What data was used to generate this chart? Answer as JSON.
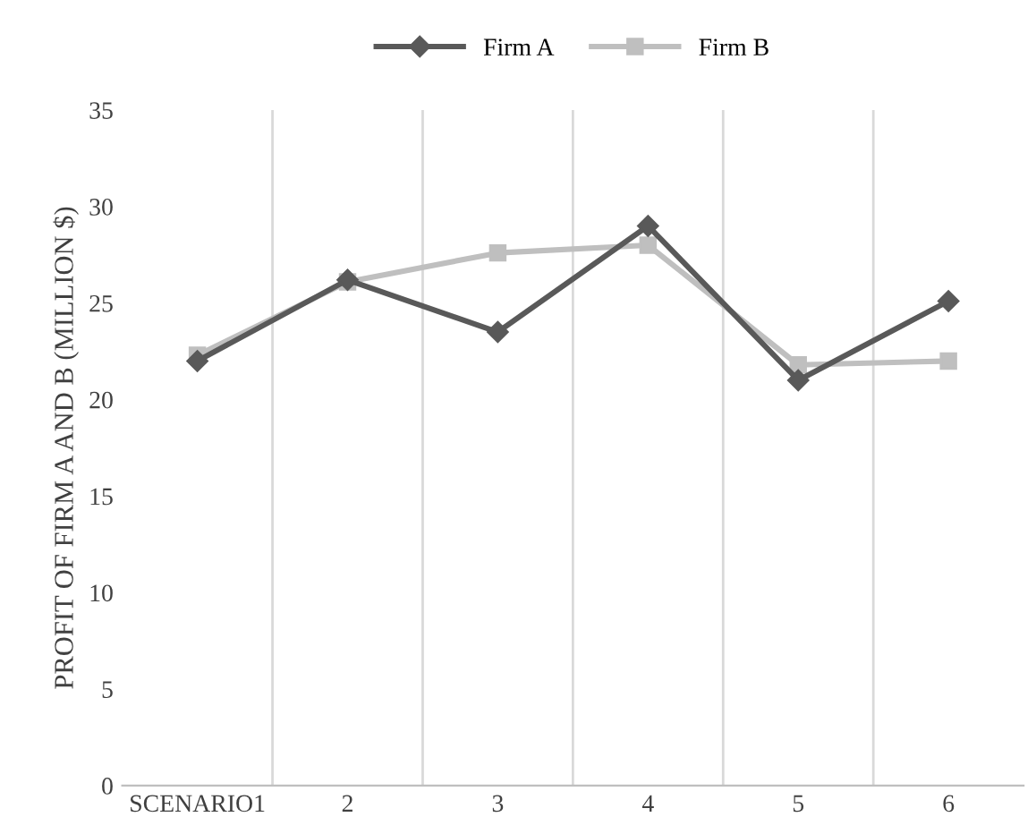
{
  "chart_data": {
    "type": "line",
    "ylabel": "PROFIT OF FIRM A AND B (MILLION $)",
    "categories": [
      "SCENARIO1",
      "2",
      "3",
      "4",
      "5",
      "6"
    ],
    "series": [
      {
        "name": "Firm A",
        "color": "#595959",
        "marker": "diamond",
        "values": [
          22,
          26.2,
          23.5,
          29,
          21,
          25.1
        ]
      },
      {
        "name": "Firm B",
        "color": "#bfbfbf",
        "marker": "square",
        "values": [
          22.3,
          26.1,
          27.6,
          28,
          21.8,
          22
        ]
      }
    ],
    "ylim": [
      0,
      35
    ],
    "yticks": [
      0,
      5,
      10,
      15,
      20,
      25,
      30,
      35
    ],
    "grid": "x",
    "legend": "top",
    "line_style": "solid"
  }
}
